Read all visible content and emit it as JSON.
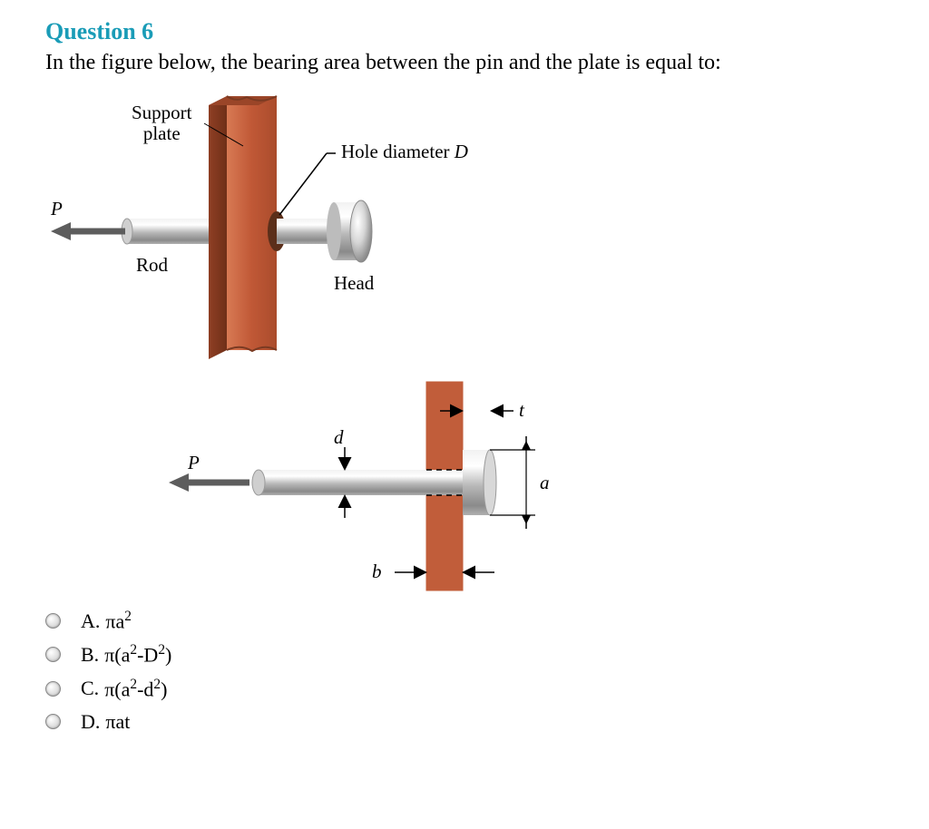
{
  "question": {
    "number_label": "Question 6",
    "prompt": "In the figure below, the bearing area between the pin and the plate is equal to:"
  },
  "figure": {
    "colors": {
      "plate_fill": "#c15d3a",
      "plate_edge": "#7a3a22",
      "metal_light": "#e3e3e3",
      "metal_mid": "#b9b9b9",
      "metal_dark": "#7e7e7e",
      "arrow": "#5d5d5d",
      "line": "#000000"
    },
    "labels": {
      "support_plate": "Support\nplate",
      "hole_diameter": "Hole diameter",
      "hole_var": "D",
      "rod": "Rod",
      "head": "Head",
      "P": "P",
      "P2": "P",
      "d": "d",
      "b": "b",
      "t": "t",
      "a": "a"
    }
  },
  "options": [
    {
      "letter": "A.",
      "text_html": "πa<sup>2</sup>"
    },
    {
      "letter": "B.",
      "text_html": "π(a<sup>2</sup>-D<sup>2</sup>)"
    },
    {
      "letter": "C.",
      "text_html": "π(a<sup>2</sup>-d<sup>2</sup>)"
    },
    {
      "letter": "D.",
      "text_html": "πat"
    }
  ],
  "styles": {
    "title_color": "#1a9cb7",
    "page_bg": "#ffffff"
  }
}
